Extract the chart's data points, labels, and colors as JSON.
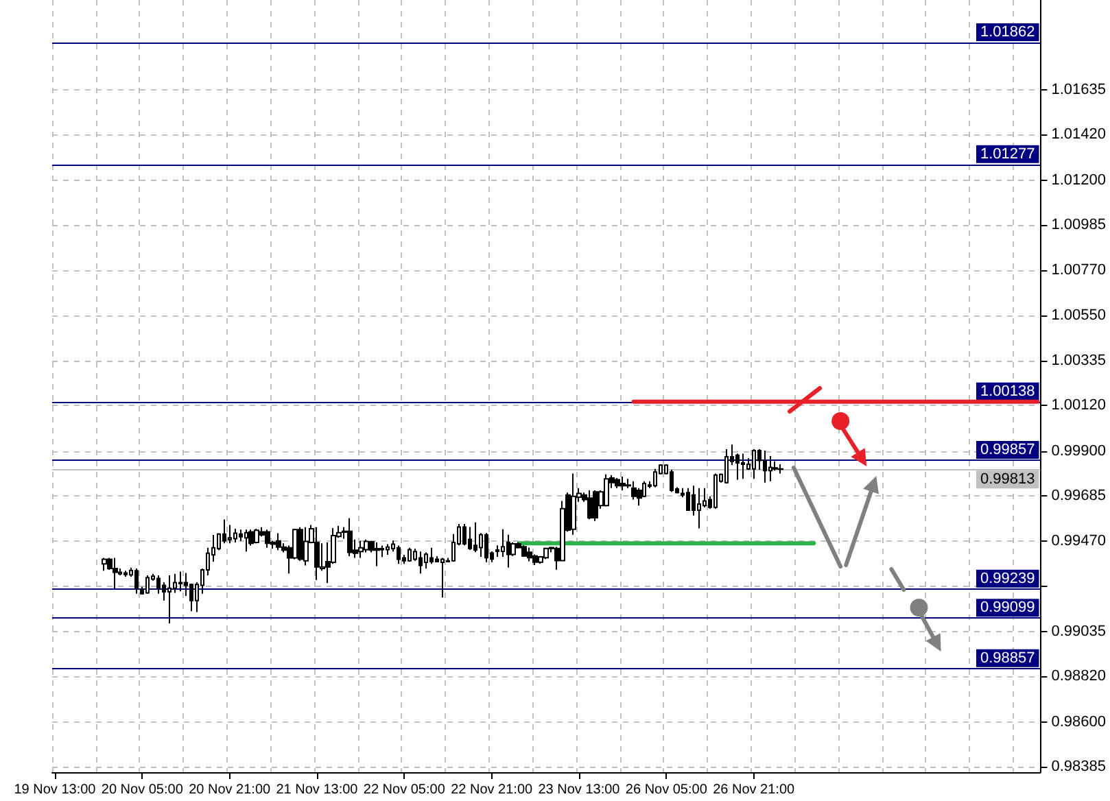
{
  "chart_data": {
    "type": "candlestick",
    "categories": [
      "19 Nov 13:00",
      null,
      null,
      null,
      null,
      null,
      null,
      null,
      null,
      null,
      null,
      null,
      null,
      null,
      null,
      null,
      "20 Nov 05:00",
      null,
      null,
      null,
      null,
      null,
      null,
      null,
      null,
      null,
      null,
      null,
      null,
      null,
      null,
      null,
      "20 Nov 21:00",
      null,
      null,
      null,
      null,
      null,
      null,
      null,
      null,
      null,
      null,
      null,
      null,
      null,
      null,
      null,
      "21 Nov 13:00",
      null,
      null,
      null,
      null,
      null,
      null,
      null,
      null,
      null,
      null,
      null,
      null,
      null,
      null,
      null,
      "22 Nov 05:00",
      null,
      null,
      null,
      null,
      null,
      null,
      null,
      null,
      null,
      null,
      null,
      null,
      null,
      null,
      null,
      "22 Nov 21:00",
      null,
      null,
      null,
      null,
      null,
      null,
      null,
      null,
      null,
      null,
      null,
      null,
      null,
      null,
      null,
      "23 Nov 13:00",
      null,
      null,
      null,
      null,
      null,
      null,
      null,
      null,
      null,
      null,
      null,
      null,
      null,
      null,
      null,
      "26 Nov 05:00",
      null,
      null,
      null,
      null,
      null,
      null,
      null,
      null,
      null,
      null,
      null,
      null,
      null,
      null,
      null,
      "26 Nov 21:00",
      null,
      null,
      null,
      null,
      null,
      null,
      null,
      null,
      null,
      null,
      null,
      null,
      null,
      null,
      null,
      null,
      null,
      null,
      null,
      null,
      null,
      null,
      null,
      null,
      null,
      null,
      null,
      null,
      null,
      null,
      null,
      null,
      null,
      null,
      null,
      null,
      null,
      null,
      null,
      null,
      null,
      null,
      null,
      null,
      null,
      null,
      null,
      null,
      null,
      null,
      null,
      null
    ],
    "ylim": [
      0.98359,
      1.02066
    ],
    "yticks": [
      1.01635,
      {
        "value": 1.0142,
        "label": "1.01420"
      },
      {
        "value": 1.012,
        "label": "1.01200"
      },
      1.00985,
      {
        "value": 1.0077,
        "label": "1.00770"
      },
      {
        "value": 1.0055,
        "label": "1.00550"
      },
      1.00335,
      {
        "value": 1.0012,
        "label": "1.00120"
      },
      {
        "value": 0.999,
        "label": "0.99900"
      },
      0.99685,
      {
        "value": 0.9947,
        "label": "0.99470"
      },
      {
        "value": 0.9925,
        "label": null
      },
      0.99035,
      {
        "value": 0.9882,
        "label": "0.98820"
      },
      {
        "value": 0.986,
        "label": "0.98600"
      },
      0.98385
    ],
    "grid": true,
    "ref_lines": [
      {
        "axis": "y",
        "value": 1.01862,
        "label": "1.01862",
        "color": "#000080"
      },
      {
        "axis": "y",
        "value": 1.01277,
        "label": "1.01277",
        "color": "#000080"
      },
      {
        "axis": "y",
        "value": 1.00138,
        "label": "1.00138",
        "color": "#000080"
      },
      {
        "axis": "y",
        "value": 0.99857,
        "label": "0.99857",
        "color": "#000080"
      },
      {
        "axis": "y",
        "value": 0.99813,
        "label": "0.99813",
        "color": "#c0c0c0"
      },
      {
        "axis": "y",
        "value": 0.99239,
        "label": "0.99239",
        "color": "#000080"
      },
      {
        "axis": "y",
        "value": 0.99099,
        "label": "0.99099",
        "color": "#000080"
      },
      {
        "axis": "y",
        "value": 0.98857,
        "label": "0.98857",
        "color": "#000080"
      }
    ],
    "series": [
      {
        "color": "#000000",
        "ohlc": [
          null,
          null,
          null,
          null,
          null,
          null,
          null,
          null,
          null,
          [
            0.99359,
            0.99388,
            0.99326,
            0.99381
          ],
          [
            0.99381,
            0.99388,
            0.9933,
            0.99337
          ],
          [
            0.99337,
            0.99388,
            0.99238,
            0.99319
          ],
          [
            0.99311,
            0.99337,
            0.99304,
            0.99319
          ],
          [
            0.99315,
            0.99326,
            0.99297,
            0.99308
          ],
          [
            0.99306,
            0.99341,
            0.99297,
            0.99328
          ],
          [
            0.99326,
            0.99337,
            0.99216,
            0.99242
          ],
          [
            0.99238,
            0.99249,
            0.99212,
            0.99216
          ],
          [
            0.9922,
            0.99304,
            0.99216,
            0.99293
          ],
          [
            0.99286,
            0.99311,
            0.99278,
            0.993
          ],
          [
            0.99289,
            0.99304,
            0.99216,
            0.99242
          ],
          [
            0.99256,
            0.99271,
            0.99183,
            0.99225
          ],
          [
            0.99225,
            0.99304,
            0.99073,
            0.99242
          ],
          [
            0.99242,
            0.99311,
            0.9922,
            0.99269
          ],
          [
            0.99264,
            0.99322,
            0.99227,
            0.99269
          ],
          [
            0.99269,
            0.99315,
            0.99205,
            0.99256
          ],
          [
            0.9926,
            0.99264,
            0.99132,
            0.99183
          ],
          [
            0.99183,
            0.99271,
            0.99128,
            0.9926
          ],
          [
            0.99256,
            0.99337,
            0.99216,
            0.9933
          ],
          [
            0.9933,
            0.99436,
            0.99304,
            0.9941
          ],
          [
            0.99403,
            0.99498,
            0.9937,
            0.99436
          ],
          [
            0.99432,
            0.99506,
            0.99425,
            0.99502
          ],
          [
            0.99502,
            0.99572,
            0.99458,
            0.99469
          ],
          [
            0.99476,
            0.99546,
            0.99458,
            0.99484
          ],
          [
            0.9948,
            0.99528,
            0.99462,
            0.99506
          ],
          [
            0.99502,
            0.99524,
            0.99469,
            0.99489
          ],
          [
            0.99484,
            0.99524,
            0.99418,
            0.99509
          ],
          [
            0.99513,
            0.99524,
            0.99447,
            0.99458
          ],
          [
            0.99462,
            0.99528,
            0.99458,
            0.9952
          ],
          [
            0.99513,
            0.99535,
            0.99491,
            0.99498
          ],
          [
            0.99513,
            0.99524,
            0.99436,
            0.99458
          ],
          [
            0.99462,
            0.99469,
            0.99432,
            0.99454
          ],
          [
            0.99469,
            0.99506,
            0.99425,
            0.9944
          ],
          [
            0.9944,
            0.99458,
            0.99414,
            0.99425
          ],
          [
            0.99436,
            0.99447,
            0.99313,
            0.99388
          ],
          [
            0.99388,
            0.99528,
            0.99381,
            0.99524
          ],
          [
            0.99524,
            0.99535,
            0.99374,
            0.99381
          ],
          [
            0.99374,
            0.99535,
            0.99352,
            0.99467
          ],
          [
            0.99462,
            0.99546,
            0.99458,
            0.99528
          ],
          [
            0.99462,
            0.99535,
            0.99282,
            0.99344
          ],
          [
            0.99337,
            0.99458,
            0.99326,
            0.99344
          ],
          [
            0.9937,
            0.99462,
            0.99267,
            0.99344
          ],
          [
            0.99366,
            0.99531,
            0.99359,
            0.99495
          ],
          [
            0.99491,
            0.99542,
            0.99484,
            0.99509
          ],
          [
            0.99515,
            0.99535,
            0.9948,
            0.99511
          ],
          [
            0.99515,
            0.99579,
            0.99396,
            0.99414
          ],
          [
            0.99425,
            0.99476,
            0.99388,
            0.9941
          ],
          [
            0.99418,
            0.99469,
            0.99388,
            0.99436
          ],
          [
            0.99427,
            0.99476,
            0.99414,
            0.99467
          ],
          [
            0.99465,
            0.99469,
            0.99414,
            0.99425
          ],
          [
            0.99432,
            0.99462,
            0.99348,
            0.99425
          ],
          [
            0.99427,
            0.99447,
            0.99392,
            0.99432
          ],
          [
            0.99427,
            0.99454,
            0.99403,
            0.9944
          ],
          [
            0.99432,
            0.99471,
            0.99418,
            0.99454
          ],
          [
            0.99436,
            0.99447,
            0.99359,
            0.99381
          ],
          [
            0.99388,
            0.99403,
            0.99359,
            0.99374
          ],
          [
            0.99374,
            0.99436,
            0.9937,
            0.99427
          ],
          [
            0.99381,
            0.99432,
            0.99374,
            0.99418
          ],
          [
            0.99388,
            0.99418,
            0.99313,
            0.99352
          ],
          [
            0.99366,
            0.99414,
            0.99337,
            0.99405
          ],
          [
            0.99388,
            0.99436,
            0.99359,
            0.9937
          ],
          [
            0.99381,
            0.99396,
            0.99366,
            0.9937
          ],
          [
            0.99366,
            0.99388,
            0.99198,
            0.99381
          ],
          [
            0.9937,
            0.99388,
            0.99366,
            0.99374
          ],
          [
            0.99374,
            0.99502,
            0.9937,
            0.99462
          ],
          [
            0.99455,
            0.99551,
            0.99448,
            0.99536
          ],
          [
            0.99536,
            0.99551,
            0.99448,
            0.99455
          ],
          [
            0.99477,
            0.99536,
            0.99426,
            0.99433
          ],
          [
            0.99448,
            0.99558,
            0.99415,
            0.99426
          ],
          [
            0.99437,
            0.99507,
            0.99393,
            0.99499
          ],
          [
            0.99499,
            0.99507,
            0.99367,
            0.99389
          ],
          [
            0.99411,
            0.99419,
            0.99367,
            0.99382
          ],
          [
            0.99419,
            0.99448,
            0.99393,
            0.99426
          ],
          [
            0.99419,
            0.99525,
            0.99393,
            0.99441
          ],
          [
            0.99463,
            0.99499,
            0.99342,
            0.99404
          ],
          [
            0.99404,
            0.99463,
            0.99397,
            0.99455
          ],
          [
            0.99455,
            0.99463,
            0.99433,
            0.99437
          ],
          [
            0.99441,
            0.99448,
            0.99393,
            0.99397
          ],
          [
            0.99415,
            0.99437,
            0.99371,
            0.99389
          ],
          [
            0.99397,
            0.99404,
            0.99353,
            0.99367
          ],
          [
            0.99367,
            0.99397,
            0.9936,
            0.99393
          ],
          [
            0.99389,
            0.99437,
            0.99382,
            0.99433
          ],
          [
            0.99433,
            0.99441,
            0.99415,
            0.99437
          ],
          [
            0.99433,
            0.99441,
            0.99331,
            0.99375
          ],
          [
            0.99375,
            0.99661,
            0.99371,
            0.99624
          ],
          [
            0.9969,
            0.99701,
            0.99514,
            0.99521
          ],
          [
            0.99525,
            0.99793,
            0.99499,
            0.99683
          ],
          [
            0.99679,
            0.99723,
            0.99657,
            0.99697
          ],
          [
            0.9969,
            0.99701,
            0.99657,
            0.99668
          ],
          [
            0.99675,
            0.99712,
            0.99573,
            0.9958
          ],
          [
            0.99705,
            0.99712,
            0.99565,
            0.9958
          ],
          [
            0.99639,
            0.99712,
            0.99624,
            0.99705
          ],
          [
            0.99639,
            0.99789,
            0.99635,
            0.99767
          ],
          [
            0.99771,
            0.99785,
            0.99723,
            0.99749
          ],
          [
            0.99763,
            0.99771,
            0.99723,
            0.99734
          ],
          [
            0.99745,
            0.99778,
            0.99712,
            0.99734
          ],
          [
            0.99734,
            0.99767,
            0.99723,
            0.99738
          ],
          [
            0.99723,
            0.99756,
            0.99668,
            0.99683
          ],
          [
            0.99712,
            0.99723,
            0.99639,
            0.99675
          ],
          [
            0.99683,
            0.99756,
            0.99679,
            0.99745
          ],
          [
            0.99732,
            0.99756,
            0.99723,
            0.99738
          ],
          [
            0.99734,
            0.99815,
            0.99727,
            0.998
          ],
          [
            0.99793,
            0.99837,
            0.99789,
            0.99833
          ],
          [
            0.99793,
            0.99837,
            0.99789,
            0.99833
          ],
          [
            0.998,
            0.99811,
            0.99705,
            0.99712
          ],
          [
            0.99719,
            0.99727,
            0.99697,
            0.99701
          ],
          [
            0.99697,
            0.99723,
            0.99679,
            0.9969
          ],
          [
            0.99701,
            0.99723,
            0.99613,
            0.99617
          ],
          [
            0.9969,
            0.99734,
            0.99591,
            0.99617
          ],
          [
            0.99617,
            0.99723,
            0.99529,
            0.99646
          ],
          [
            0.99639,
            0.99723,
            0.99631,
            0.99661
          ],
          [
            0.99668,
            0.99683,
            0.99624,
            0.99631
          ],
          [
            0.99631,
            0.99793,
            0.99624,
            0.99785
          ],
          [
            0.99756,
            0.99793,
            0.99749,
            0.99789
          ],
          [
            0.99749,
            0.9991,
            0.99745,
            0.99873
          ],
          [
            0.99873,
            0.99932,
            0.99833,
            0.99851
          ],
          [
            0.99881,
            0.99888,
            0.99763,
            0.99844
          ],
          [
            0.99837,
            0.99888,
            0.99767,
            0.99844
          ],
          [
            0.99815,
            0.99866,
            0.99811,
            0.99837
          ],
          [
            0.99815,
            0.9991,
            0.99767,
            0.99903
          ],
          [
            0.99903,
            0.9991,
            0.99811,
            0.99855
          ],
          [
            0.99855,
            0.99903,
            0.99749,
            0.99807
          ],
          [
            0.99807,
            0.99877,
            0.99756,
            0.99822
          ],
          [
            0.99815,
            0.99851,
            0.99807,
            0.9982
          ],
          [
            0.99815,
            0.99837,
            0.99793,
            0.99813
          ],
          null,
          null,
          null,
          null,
          null,
          null,
          null,
          null,
          null,
          null,
          null,
          null,
          null,
          null,
          null,
          null,
          null,
          null,
          null,
          null,
          null,
          null,
          null,
          null,
          null,
          null,
          null,
          null,
          null,
          null,
          null,
          null,
          null,
          null,
          null,
          null,
          null,
          null,
          null,
          null,
          null,
          null,
          null,
          null,
          null,
          null,
          null
        ]
      },
      {
        "type": "line",
        "color": "#e8202a",
        "values": [
          null,
          null,
          null,
          null,
          null,
          null,
          null,
          null,
          null,
          null,
          null,
          null,
          null,
          null,
          null,
          null,
          null,
          null,
          null,
          null,
          null,
          null,
          null,
          null,
          null,
          null,
          null,
          null,
          null,
          null,
          null,
          null,
          null,
          null,
          null,
          null,
          null,
          null,
          null,
          null,
          null,
          null,
          null,
          null,
          null,
          null,
          null,
          null,
          null,
          null,
          null,
          null,
          null,
          null,
          null,
          null,
          null,
          null,
          null,
          null,
          null,
          null,
          null,
          null,
          null,
          null,
          null,
          null,
          null,
          null,
          null,
          null,
          null,
          null,
          null,
          null,
          null,
          null,
          null,
          null,
          null,
          null,
          null,
          null,
          null,
          null,
          null,
          null,
          null,
          null,
          null,
          null,
          null,
          null,
          null,
          null,
          null,
          null,
          null,
          null,
          null,
          null,
          null,
          null,
          null,
          null,
          1.00138,
          1.00138,
          1.00138,
          1.00138,
          1.00138,
          1.00138,
          1.00138,
          1.00138,
          1.00138,
          1.00138,
          1.00138,
          1.00138,
          1.00138,
          1.00138,
          1.00138,
          1.00138,
          1.00138,
          1.00138,
          1.00138,
          1.00138,
          1.00138,
          1.00138,
          1.00138,
          1.00138,
          1.00138,
          1.00138,
          1.00138,
          1.00138,
          1.00138,
          1.00138,
          1.00138,
          1.00138,
          1.00138,
          1.00138,
          1.00138,
          1.00138,
          1.00138,
          1.00138,
          1.00138,
          1.00138,
          1.00138,
          1.00138,
          1.00138,
          1.00138,
          1.00138,
          1.00138,
          1.00138,
          1.00138,
          1.00138,
          1.00138,
          1.00138,
          1.00138,
          1.00138,
          1.00138,
          1.00138,
          1.00138,
          1.00138,
          1.00138,
          1.00138,
          1.00138,
          1.00138,
          1.00138,
          1.00138,
          1.00138,
          1.00138,
          1.00138,
          1.00138,
          1.00138,
          1.00138,
          1.00138,
          1.00138,
          1.00138,
          1.00138,
          1.00138,
          1.00138
        ]
      },
      {
        "type": "line",
        "color": "#2db34a",
        "values": [
          null,
          null,
          null,
          null,
          null,
          null,
          null,
          null,
          null,
          null,
          null,
          null,
          null,
          null,
          null,
          null,
          null,
          null,
          null,
          null,
          null,
          null,
          null,
          null,
          null,
          null,
          null,
          null,
          null,
          null,
          null,
          null,
          null,
          null,
          null,
          null,
          null,
          null,
          null,
          null,
          null,
          null,
          null,
          null,
          null,
          null,
          null,
          null,
          null,
          null,
          null,
          null,
          null,
          null,
          null,
          null,
          null,
          null,
          null,
          null,
          null,
          null,
          null,
          null,
          null,
          null,
          null,
          null,
          null,
          null,
          null,
          null,
          null,
          null,
          null,
          null,
          null,
          null,
          null,
          null,
          null,
          null,
          null,
          null,
          null,
          0.99458,
          0.99458,
          0.99458,
          0.99458,
          0.99458,
          0.99458,
          0.99458,
          0.99458,
          0.99458,
          0.99458,
          0.99458,
          0.99458,
          0.99458,
          0.99458,
          0.99458,
          0.99458,
          0.99458,
          0.99458,
          0.99458,
          0.99458,
          0.99458,
          0.99458,
          0.99458,
          0.99458,
          0.99458,
          0.99458,
          0.99458,
          0.99458,
          0.99458,
          0.99458,
          0.99458,
          0.99458,
          0.99458,
          0.99458,
          0.99458,
          0.99458,
          0.99458,
          0.99458,
          0.99458,
          0.99458,
          0.99458,
          0.99458,
          0.99458,
          0.99458,
          0.99458,
          0.99458,
          0.99458,
          0.99458,
          0.99458,
          0.99458,
          0.99458,
          0.99458,
          0.99458,
          0.99458,
          0.99458,
          null,
          null,
          null,
          null,
          null,
          null,
          null,
          null,
          null,
          null,
          null,
          null,
          null,
          null,
          null,
          null,
          null,
          null,
          null,
          null,
          null,
          null,
          null,
          null,
          null,
          null,
          null,
          null,
          null,
          null,
          null,
          null,
          null,
          null,
          null,
          null,
          null,
          null,
          null,
          null,
          null
        ]
      }
    ]
  }
}
